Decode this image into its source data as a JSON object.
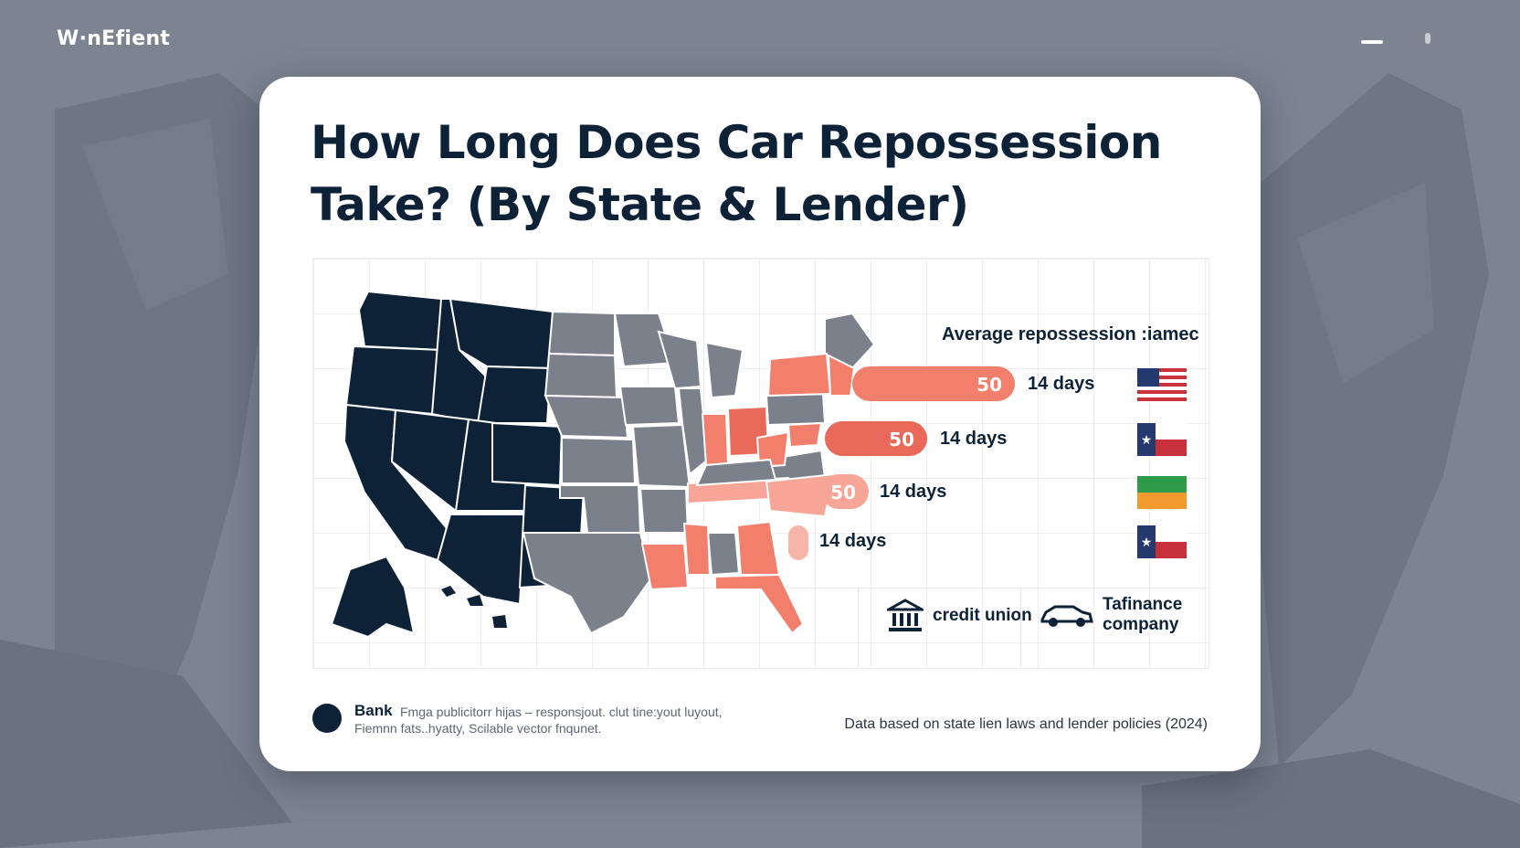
{
  "brand": {
    "name": "W·nEfient"
  },
  "window": {
    "minimize_icon": "minimize-icon",
    "dot_icon": "handle-icon"
  },
  "card": {
    "title": "How Long Does Car Repossession Take? (By State & Lender)"
  },
  "legend": {
    "title": "Average repossession :iamec",
    "rows": [
      {
        "value": "50",
        "days": "14 days",
        "color": "#f27f6c",
        "flag": "us-flag-icon"
      },
      {
        "value": "50",
        "days": "14 days",
        "color": "#e8685a",
        "flag": "texas-flag-icon"
      },
      {
        "value": "50",
        "days": "14 days",
        "color": "#f6a596",
        "flag": "green-orange-flag-icon"
      },
      {
        "value": "",
        "days": "14 days",
        "color": "#f7b5a9",
        "flag": "texas-flag-icon"
      }
    ]
  },
  "lenders": {
    "credit_union": {
      "label": "credit union",
      "icon": "bank-building-icon"
    },
    "finance_company": {
      "label_line1": "Tafinance",
      "label_line2": "company",
      "icon": "car-icon"
    }
  },
  "map_colors": {
    "bank": "#0d2237",
    "gray": "#7b818b",
    "salmon": "#f27f6c",
    "light_salmon": "#f6a596"
  },
  "footer": {
    "legend_label": "Bank",
    "note_line1": "Fmga publicitorr hijas – responsjout. clut tine:yout luyout,",
    "note_line2": "Fiemnn fats..hyatty, Scilable vector fnqunet.",
    "source": "Data based on state lien laws and lender policies (2024)"
  }
}
